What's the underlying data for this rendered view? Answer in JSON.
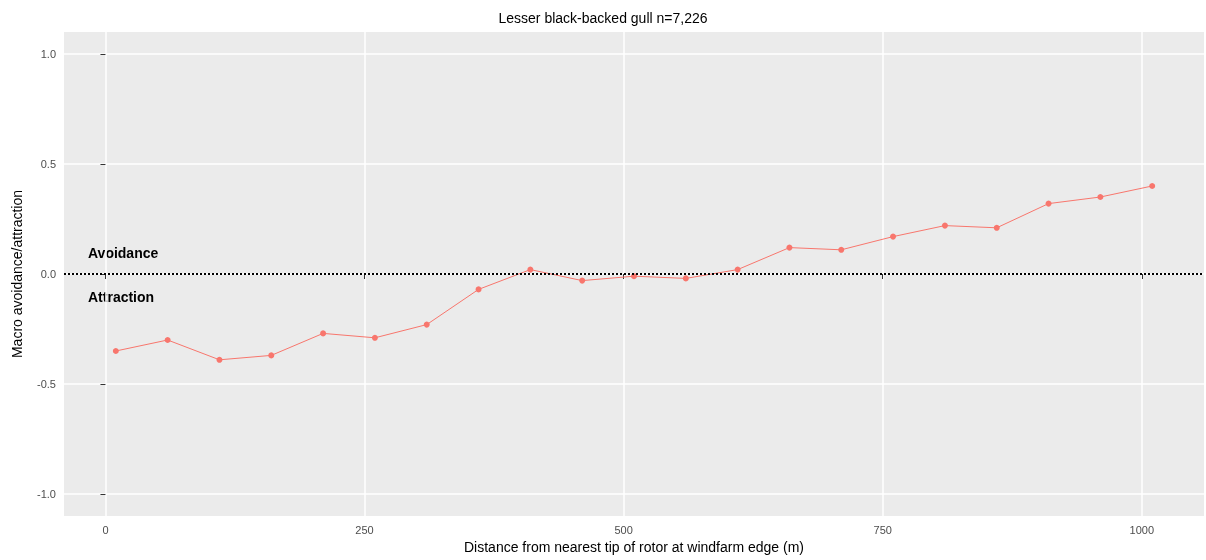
{
  "chart_data": {
    "type": "line",
    "title": "Lesser black-backed gull n=7,226",
    "xlabel": "Distance from nearest tip of rotor at windfarm edge (m)",
    "ylabel": "Macro avoidance/attraction",
    "x": [
      10,
      60,
      110,
      160,
      210,
      260,
      310,
      360,
      410,
      460,
      510,
      560,
      610,
      660,
      710,
      760,
      810,
      860,
      910,
      960,
      1010
    ],
    "series": [
      {
        "color": "#f8766d",
        "values": [
          -0.35,
          -0.3,
          -0.39,
          -0.37,
          -0.27,
          -0.29,
          -0.23,
          -0.07,
          0.02,
          -0.03,
          -0.01,
          -0.02,
          0.02,
          0.12,
          0.11,
          0.17,
          0.22,
          0.21,
          0.32,
          0.35,
          0.4
        ]
      }
    ],
    "xlim": [
      -40,
      1060
    ],
    "xticks": [
      0,
      250,
      500,
      750,
      1000
    ],
    "ylim": [
      -1.1,
      1.1
    ],
    "yticks": [
      {
        "value": -1,
        "label": "-1.0"
      },
      -0.5,
      {
        "value": 0,
        "label": "0.0"
      },
      0.5,
      {
        "value": 1,
        "label": "1.0"
      }
    ],
    "ref_lines": [
      {
        "axis": "y",
        "value": 0,
        "color": "#000000",
        "line_style": "dotted"
      }
    ],
    "annotations": [
      "Avoidance",
      "Attraction"
    ],
    "grid": true,
    "marker": "circle",
    "line_style": "solid"
  }
}
